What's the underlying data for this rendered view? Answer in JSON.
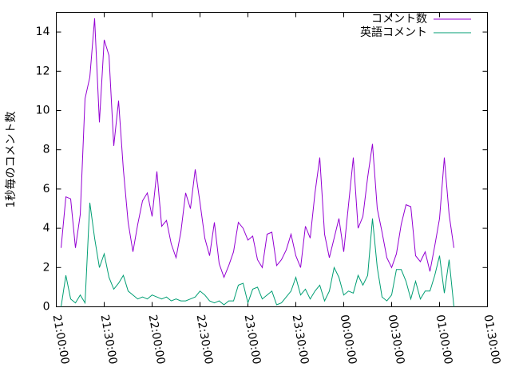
{
  "chart_data": {
    "type": "line",
    "y_label": "1秒毎のコメント数",
    "legend": "top-right",
    "xlim": [
      "21:00:00",
      "01:30:00"
    ],
    "xticks": [
      "21:00:00",
      "21:30:00",
      "22:00:00",
      "22:30:00",
      "23:00:00",
      "23:30:00",
      "00:00:00",
      "00:30:00",
      "01:00:00",
      "01:30:00"
    ],
    "ylim": [
      0,
      15
    ],
    "yticks": [
      0,
      2,
      4,
      6,
      8,
      10,
      12,
      14
    ],
    "x": [
      "21:03:00",
      "21:06:00",
      "21:09:00",
      "21:12:00",
      "21:15:00",
      "21:18:00",
      "21:21:00",
      "21:24:00",
      "21:27:00",
      "21:30:00",
      "21:33:00",
      "21:36:00",
      "21:39:00",
      "21:42:00",
      "21:45:00",
      "21:48:00",
      "21:51:00",
      "21:54:00",
      "21:57:00",
      "22:00:00",
      "22:03:00",
      "22:06:00",
      "22:09:00",
      "22:12:00",
      "22:15:00",
      "22:18:00",
      "22:21:00",
      "22:24:00",
      "22:27:00",
      "22:30:00",
      "22:33:00",
      "22:36:00",
      "22:39:00",
      "22:42:00",
      "22:45:00",
      "22:48:00",
      "22:51:00",
      "22:54:00",
      "22:57:00",
      "23:00:00",
      "23:03:00",
      "23:06:00",
      "23:09:00",
      "23:12:00",
      "23:15:00",
      "23:18:00",
      "23:21:00",
      "23:24:00",
      "23:27:00",
      "23:30:00",
      "23:33:00",
      "23:36:00",
      "23:39:00",
      "23:42:00",
      "23:45:00",
      "23:48:00",
      "23:51:00",
      "23:54:00",
      "23:57:00",
      "00:00:00",
      "00:03:00",
      "00:06:00",
      "00:09:00",
      "00:12:00",
      "00:15:00",
      "00:18:00",
      "00:21:00",
      "00:24:00",
      "00:27:00",
      "00:30:00",
      "00:33:00",
      "00:36:00",
      "00:39:00",
      "00:42:00",
      "00:45:00",
      "00:48:00",
      "00:51:00",
      "00:54:00",
      "00:57:00",
      "01:00:00",
      "01:03:00",
      "01:06:00",
      "01:09:00"
    ],
    "series": [
      {
        "name": "コメント数",
        "color": "#9400d3",
        "values": [
          3.0,
          5.6,
          5.5,
          3.0,
          4.7,
          10.6,
          11.7,
          14.7,
          9.4,
          13.6,
          12.8,
          8.2,
          10.5,
          7.0,
          4.3,
          2.8,
          4.2,
          5.4,
          5.8,
          4.6,
          6.9,
          4.1,
          4.4,
          3.2,
          2.5,
          3.8,
          5.8,
          5.0,
          7.0,
          5.3,
          3.5,
          2.6,
          4.3,
          2.2,
          1.5,
          2.1,
          2.8,
          4.3,
          4.0,
          3.4,
          3.6,
          2.4,
          2.0,
          3.7,
          3.8,
          2.1,
          2.4,
          2.9,
          3.7,
          2.6,
          2.0,
          4.1,
          3.5,
          5.8,
          7.6,
          3.7,
          2.5,
          3.5,
          4.5,
          2.8,
          5.2,
          7.6,
          4.0,
          4.6,
          6.6,
          8.3,
          5.0,
          3.8,
          2.5,
          2.0,
          2.7,
          4.2,
          5.2,
          5.1,
          2.6,
          2.3,
          2.8,
          1.8,
          3.1,
          4.5,
          7.6,
          4.7,
          3.0
        ]
      },
      {
        "name": "英語コメント",
        "color": "#009e73",
        "values": [
          0,
          1.6,
          0.4,
          0.2,
          0.6,
          0.2,
          5.3,
          3.5,
          2.0,
          2.7,
          1.5,
          0.9,
          1.2,
          1.6,
          0.8,
          0.6,
          0.4,
          0.5,
          0.4,
          0.6,
          0.5,
          0.4,
          0.5,
          0.3,
          0.4,
          0.3,
          0.3,
          0.4,
          0.5,
          0.8,
          0.6,
          0.3,
          0.2,
          0.3,
          0.1,
          0.3,
          0.3,
          1.1,
          1.2,
          0.2,
          0.9,
          1.0,
          0.4,
          0.6,
          0.8,
          0.1,
          0.2,
          0.5,
          0.8,
          1.5,
          0.6,
          0.9,
          0.4,
          0.8,
          1.1,
          0.3,
          0.8,
          2.0,
          1.5,
          0.6,
          0.8,
          0.7,
          1.6,
          1.1,
          1.6,
          4.5,
          2.0,
          0.5,
          0.3,
          0.6,
          1.9,
          1.9,
          1.3,
          0.4,
          1.3,
          0.4,
          0.8,
          0.8,
          1.6,
          2.6,
          0.7,
          2.4,
          0
        ]
      }
    ]
  }
}
